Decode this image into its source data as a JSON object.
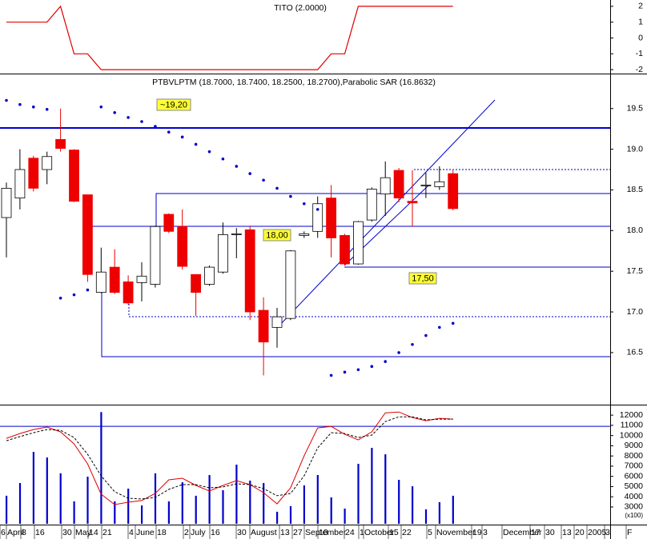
{
  "chart_data": [
    {
      "type": "line",
      "title": "TITO (2.0000)",
      "color": "#e00000",
      "values": [
        1,
        1,
        1,
        1,
        2,
        -1,
        -1,
        -2,
        -2,
        -2,
        -2,
        -2,
        -2,
        -2,
        -2,
        -2,
        -2,
        -2,
        -2,
        -2,
        -2,
        -2,
        -2,
        -2,
        -1,
        -1,
        2,
        2,
        2,
        2,
        2,
        2,
        2,
        2
      ],
      "ylim": [
        -2.25,
        2.4
      ],
      "yticks": [
        2,
        1,
        0,
        -1,
        -2
      ]
    },
    {
      "type": "candlestick",
      "title": "PTBVLPTM (18.7000, 18.7400, 18.2500, 18.2700),Parabolic SAR (16.8632)",
      "open": [
        18.16,
        18.4,
        18.89,
        18.75,
        19.12,
        18.99,
        18.44,
        17.24,
        17.55,
        17.37,
        17.36,
        17.34,
        18.2,
        18.05,
        17.46,
        17.34,
        17.49,
        17.95,
        18.01,
        17.02,
        16.81,
        16.92,
        17.94,
        17.99,
        18.4,
        17.94,
        17.59,
        18.13,
        18.45,
        18.74,
        18.36,
        18.55,
        18.54,
        18.7
      ],
      "high": [
        18.59,
        19.0,
        18.92,
        18.97,
        19.5,
        19.0,
        18.44,
        17.79,
        17.77,
        17.45,
        17.61,
        18.06,
        18.21,
        18.26,
        17.46,
        17.57,
        18.1,
        18.03,
        18.06,
        17.18,
        17.05,
        17.76,
        17.99,
        18.42,
        18.56,
        17.96,
        18.12,
        18.53,
        18.85,
        18.77,
        18.74,
        18.71,
        18.79,
        18.74
      ],
      "low": [
        17.67,
        18.26,
        18.48,
        18.57,
        18.97,
        18.35,
        17.37,
        17.23,
        17.22,
        17.09,
        17.13,
        17.3,
        17.97,
        17.52,
        16.95,
        17.32,
        17.47,
        17.66,
        16.9,
        16.22,
        16.56,
        16.9,
        17.91,
        17.91,
        17.67,
        17.57,
        17.58,
        18.11,
        18.18,
        18.35,
        18.05,
        18.4,
        18.5,
        18.25
      ],
      "close": [
        18.52,
        18.75,
        18.52,
        18.91,
        19.01,
        18.36,
        17.46,
        17.49,
        17.24,
        17.11,
        17.44,
        18.05,
        17.99,
        17.56,
        17.24,
        17.55,
        17.95,
        17.96,
        17.0,
        16.63,
        16.94,
        17.75,
        17.96,
        18.33,
        17.91,
        17.59,
        18.11,
        18.51,
        18.65,
        18.4,
        18.34,
        18.56,
        18.6,
        18.27
      ],
      "sar": [
        19.6,
        19.55,
        19.52,
        19.49,
        17.17,
        17.21,
        17.27,
        19.52,
        19.45,
        19.39,
        19.34,
        19.28,
        19.21,
        19.15,
        19.06,
        18.97,
        18.88,
        18.79,
        18.7,
        18.62,
        18.52,
        18.42,
        18.33,
        18.26,
        16.22,
        16.26,
        16.29,
        16.33,
        16.39,
        16.5,
        16.6,
        16.71,
        16.81,
        16.86
      ],
      "up_color": "#ffffff",
      "down_color": "#ee0000",
      "sar_color": "#0000cc",
      "annotations": [
        "~19,20",
        "18,00",
        "17,50"
      ],
      "ylim": [
        15.87,
        19.92
      ],
      "yticks": [
        19.5,
        {
          "value": 19,
          "label": "19.0"
        },
        18.5,
        {
          "value": 18,
          "label": "18.0"
        },
        17.5,
        {
          "value": 17,
          "label": "17.0"
        },
        16.5
      ]
    },
    {
      "type": "bar",
      "axis_label": "(x100)",
      "color": "#0000cc",
      "values": [
        4100,
        5350,
        8400,
        7850,
        6300,
        3550,
        5970,
        12300,
        3550,
        4800,
        3150,
        6300,
        3550,
        5430,
        4100,
        6130,
        4640,
        7150,
        5580,
        5350,
        2530,
        3080,
        5110,
        6130,
        3940,
        2840,
        7230,
        8790,
        8160,
        5660,
        5030,
        2770,
        3470,
        4100
      ],
      "lines": [
        {
          "color": "#e00000",
          "style": "solid",
          "values": [
            9730,
            10200,
            10590,
            10830,
            10360,
            9180,
            7230,
            4250,
            3230,
            3470,
            3630,
            4330,
            5660,
            5820,
            5110,
            4560,
            5110,
            5580,
            5190,
            4410,
            3310,
            4880,
            8010,
            10750,
            10900,
            10120,
            9570,
            10360,
            12230,
            12310,
            11760,
            11450,
            11690,
            11610
          ]
        },
        {
          "color": "#000000",
          "style": "dashed",
          "values": [
            9490,
            9890,
            10280,
            10590,
            10510,
            9810,
            8160,
            6050,
            4490,
            3860,
            3780,
            3940,
            4720,
            5190,
            5190,
            4880,
            4960,
            5270,
            5190,
            4800,
            4100,
            4330,
            6050,
            8790,
            10280,
            10200,
            9810,
            10040,
            11370,
            11840,
            11840,
            11530,
            11610,
            11610
          ]
        }
      ],
      "reference_line": 10900,
      "ylim": [
        1350,
        12950
      ],
      "yticks": [
        12000,
        11000,
        10000,
        9000,
        8000,
        7000,
        6000,
        5000,
        4000,
        3000
      ],
      "x_labels": [
        "6",
        "April",
        "8",
        "16",
        "30",
        "May",
        "14",
        "21",
        "4",
        "June",
        "18",
        "2",
        "July",
        "16",
        "30",
        "August",
        "13",
        "27",
        "September",
        "10",
        "24",
        "1",
        "October",
        "15",
        "22",
        "5",
        "November",
        "19",
        "3",
        "December",
        "17",
        "30",
        "13",
        "20",
        "2005",
        "3",
        "F"
      ]
    }
  ]
}
